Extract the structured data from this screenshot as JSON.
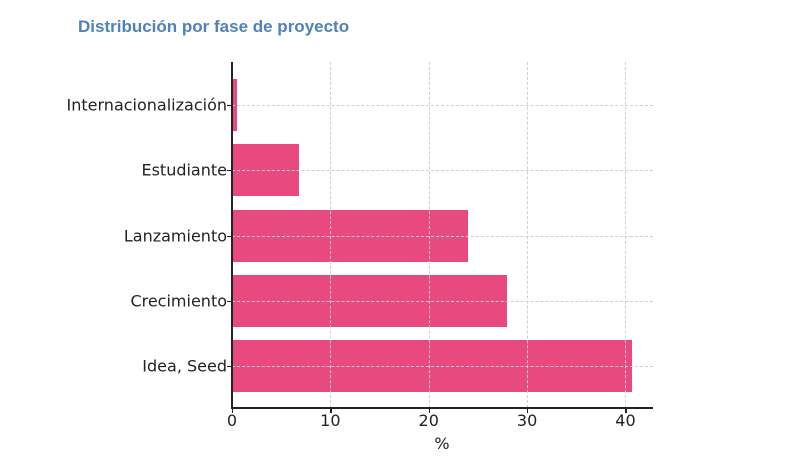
{
  "title": "Distribución por fase de proyecto",
  "chart_data": {
    "type": "bar",
    "orientation": "horizontal",
    "title": "Distribución por fase de proyecto",
    "categories": [
      "Internacionalización",
      "Estudiante",
      "Lanzamiento",
      "Crecimiento",
      "Idea, Seed"
    ],
    "values": [
      0.5,
      6.8,
      24.0,
      28.0,
      40.7
    ],
    "xlabel": "%",
    "ylabel": "",
    "xlim": [
      0,
      42.8
    ],
    "xticks": [
      0,
      10,
      20,
      30,
      40
    ],
    "grid": true,
    "bar_color": "#e84a7f",
    "legend": null
  },
  "axis": {
    "x_title": "%",
    "x_tick_labels": [
      "0",
      "10",
      "20",
      "30",
      "40"
    ]
  }
}
